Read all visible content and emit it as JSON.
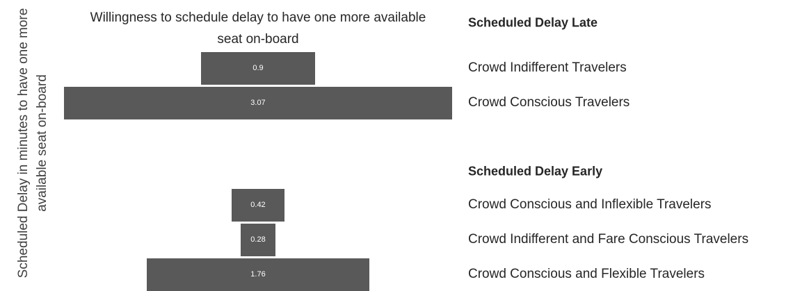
{
  "chart_data": {
    "type": "bar",
    "title": "Willingness to schedule delay to have one more available seat on-board",
    "y_label": "Scheduled Delay in minutes to have one more available seat on-board",
    "color": "#595959",
    "groups": [
      {
        "name": "Scheduled Delay Late",
        "categories": [
          "Crowd Indifferent Travelers",
          "Crowd Conscious Travelers"
        ],
        "values": [
          0.9,
          3.07
        ]
      },
      {
        "name": "Scheduled Delay Early",
        "categories": [
          "Crowd Conscious and Inflexible Travelers",
          "Crowd Indifferent and Fare Conscious Travelers",
          "Crowd Conscious and Flexible Travelers"
        ],
        "values": [
          0.42,
          0.28,
          1.76
        ]
      }
    ]
  }
}
